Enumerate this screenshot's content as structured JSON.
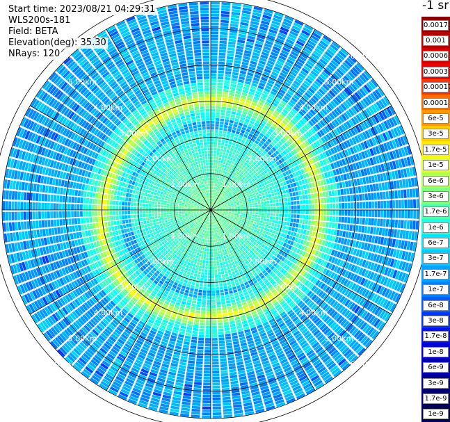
{
  "info": {
    "start_time": "Start time: 2023/08/21 04:29:31",
    "device": "WLS200s-181",
    "field": "Field: BETA",
    "elevation": "Elevation(deg): 35.30",
    "nrays": "NRays: 120"
  },
  "colorbar": {
    "unit": "-1 sr",
    "labels": [
      "0.0017",
      "0.001",
      "0.0006",
      "0.0003",
      "0.00017",
      "0.0001",
      "6e-5",
      "3e-5",
      "1.7e-5",
      "1e-5",
      "6e-6",
      "3e-6",
      "1.7e-6",
      "1e-6",
      "6e-7",
      "3e-7",
      "1.7e-7",
      "1e-7",
      "6e-8",
      "3e-8",
      "1.7e-8",
      "1e-8",
      "6e-9",
      "3e-9",
      "1.7e-9",
      "1e-9"
    ],
    "colors": [
      "#8a0000",
      "#b30000",
      "#d60000",
      "#f50000",
      "#ff3300",
      "#ff6a00",
      "#ff9900",
      "#ffcc00",
      "#ffee00",
      "#e6ff1a",
      "#b3ff4d",
      "#80ff80",
      "#4dffb3",
      "#1affe6",
      "#00e6ff",
      "#00ccff",
      "#00a3ff",
      "#0080ff",
      "#005cff",
      "#0033ff",
      "#000ff5",
      "#0000d6",
      "#0000b3",
      "#000090",
      "#000070",
      "#000050"
    ]
  },
  "chart_data": {
    "type": "heatmap",
    "projection": "polar PPI",
    "variable": "BETA",
    "n_rays": 120,
    "elevation_deg": 35.3,
    "range_rings_km": [
      "1.00km",
      "2.00km",
      "3.00km",
      "4.00km",
      "5.00km",
      "6.00km"
    ],
    "range_rings_values_km": [
      1,
      2,
      3,
      4,
      5,
      6
    ],
    "max_range_km": 5.75,
    "spoke_angles_deg": [
      0,
      30,
      60,
      90,
      120,
      150,
      180,
      210,
      240,
      270,
      300,
      330
    ],
    "color_scale": "log",
    "value_range": [
      1e-09,
      0.0017
    ],
    "features": {
      "background_level": "1e-8 to 6e-8",
      "inner_level": "1.7e-7 to 3e-7",
      "ring_peak_level": "1e-5 to 1.7e-5",
      "ring_center_km": 3.0
    }
  }
}
